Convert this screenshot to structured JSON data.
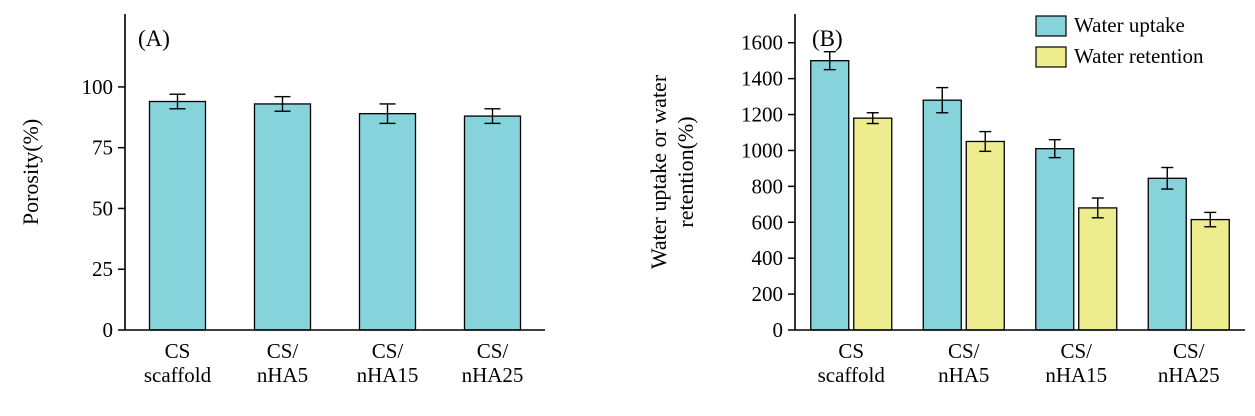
{
  "chart_data": [
    {
      "id": "A",
      "type": "bar",
      "panel_label": "(A)",
      "ylabel": "Porosity(%)",
      "ylim": [
        0,
        130
      ],
      "yticks": [
        0,
        25,
        50,
        75,
        100
      ],
      "grid": false,
      "legend_position": "none",
      "categories": [
        [
          "CS",
          "scaffold"
        ],
        [
          "CS/",
          "nHA5"
        ],
        [
          "CS/",
          "nHA15"
        ],
        [
          "CS/",
          "nHA25"
        ]
      ],
      "series": [
        {
          "name": "Porosity",
          "color": "#87D3DC",
          "values": [
            94,
            93,
            89,
            88
          ],
          "errors": [
            3,
            3,
            4,
            3
          ]
        }
      ]
    },
    {
      "id": "B",
      "type": "bar",
      "panel_label": "(B)",
      "ylabel_lines": [
        "Water uptake or water",
        "retention(%)"
      ],
      "ylim": [
        0,
        1760
      ],
      "yticks": [
        0,
        200,
        400,
        600,
        800,
        1000,
        1200,
        1400,
        1600
      ],
      "grid": false,
      "legend_position": "top-right",
      "categories": [
        [
          "CS",
          "scaffold"
        ],
        [
          "CS/",
          "nHA5"
        ],
        [
          "CS/",
          "nHA15"
        ],
        [
          "CS/",
          "nHA25"
        ]
      ],
      "series": [
        {
          "name": "Water uptake",
          "color": "#87D3DC",
          "values": [
            1500,
            1280,
            1010,
            845
          ],
          "errors": [
            50,
            70,
            50,
            60
          ]
        },
        {
          "name": "Water retention",
          "color": "#EDED8F",
          "values": [
            1180,
            1050,
            680,
            615
          ],
          "errors": [
            30,
            55,
            55,
            40
          ]
        }
      ],
      "legend": {
        "items": [
          "Water uptake",
          "Water retention"
        ]
      }
    }
  ]
}
